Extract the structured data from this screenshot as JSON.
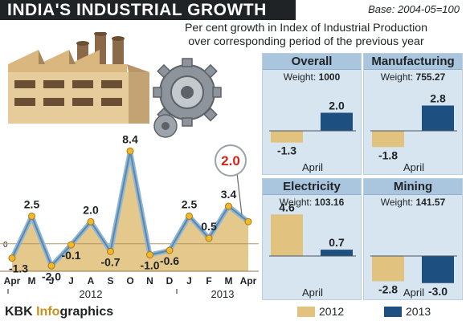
{
  "header": {
    "title": "INDIA'S INDUSTRIAL GROWTH",
    "base": "Base: 2004-05=100",
    "subtitle_line1": "Per cent growth in Index of Industrial Production",
    "subtitle_line2": "over corresponding period of the previous year"
  },
  "footer": {
    "brand_main": "KBK ",
    "brand_accent": "Info",
    "brand_rest": "graphics"
  },
  "legend": [
    {
      "label": "2012",
      "color": "#e2c27f"
    },
    {
      "label": "2013",
      "color": "#1d5080"
    }
  ],
  "colors": {
    "area_fill": "#e2c27f",
    "line_stroke": "#8fb6d4",
    "line_inner": "#5b86ae",
    "marker": "#f0b82a",
    "bar_2012": "#e2c27f",
    "bar_2013": "#1d5080",
    "callout_text": "#d0261c",
    "panel_bg": "#d6e5f0",
    "panel_head": "#a9c6de"
  },
  "chart_data": [
    {
      "type": "area",
      "months": [
        "Apr",
        "M",
        "J",
        "J",
        "A",
        "S",
        "O",
        "N",
        "D",
        "J",
        "F",
        "M",
        "Apr"
      ],
      "values": [
        -1.3,
        2.5,
        -2.0,
        -0.1,
        2.0,
        -0.7,
        8.4,
        -1.0,
        -0.6,
        2.5,
        0.5,
        3.4,
        2.0
      ],
      "value_labels": [
        "-1.3",
        "2.5",
        "-2.0",
        "-0.1",
        "2.0",
        "-0.7",
        "8.4",
        "-1.0",
        "-0.6",
        "2.5",
        "0.5",
        "3.4",
        "2.0"
      ],
      "year_labels": [
        "2012",
        "2013"
      ],
      "zero_label": "0",
      "ylim": [
        -3,
        9
      ],
      "callout": "2.0"
    },
    {
      "type": "bar",
      "panels": [
        {
          "name": "Overall",
          "weight_label": "Weight:",
          "weight": "1000",
          "category": "April",
          "values": [
            -1.3,
            2.0
          ],
          "labels": [
            "-1.3",
            "2.0"
          ],
          "ylim": [
            -3.2,
            4.8
          ]
        },
        {
          "name": "Manufacturing",
          "weight_label": "Weight:",
          "weight": "755.27",
          "category": "April",
          "values": [
            -1.8,
            2.8
          ],
          "labels": [
            "-1.8",
            "2.8"
          ],
          "ylim": [
            -3.2,
            4.8
          ]
        },
        {
          "name": "Electricity",
          "weight_label": "Weight:",
          "weight": "103.16",
          "category": "April",
          "values": [
            4.6,
            0.7
          ],
          "labels": [
            "4.6",
            "0.7"
          ],
          "ylim": [
            -3.2,
            4.8
          ]
        },
        {
          "name": "Mining",
          "weight_label": "Weight:",
          "weight": "141.57",
          "category": "April",
          "values": [
            -2.8,
            -3.0
          ],
          "labels": [
            "-2.8",
            "-3.0"
          ],
          "ylim": [
            -3.2,
            4.8
          ]
        }
      ],
      "series": [
        "2012",
        "2013"
      ]
    }
  ]
}
